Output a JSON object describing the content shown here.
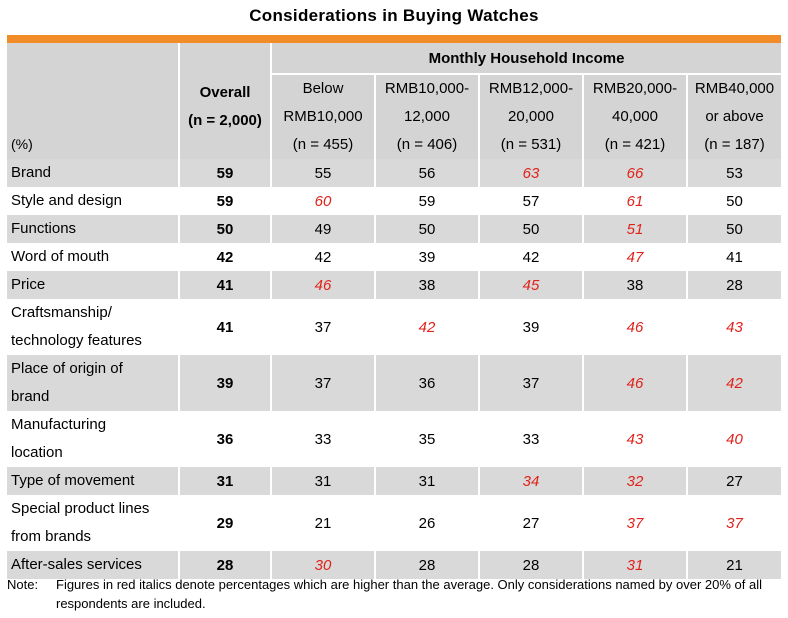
{
  "title": "Considerations in Buying Watches",
  "header": {
    "pct_label": "(%)",
    "overall_label": "Overall",
    "overall_n": "(n = 2,000)",
    "income_label": "Monthly Household Income",
    "income_groups": [
      {
        "line1": "Below",
        "line2": "RMB10,000",
        "n": "(n = 455)"
      },
      {
        "line1": "RMB10,000-",
        "line2": "12,000",
        "n": "(n = 406)"
      },
      {
        "line1": "RMB12,000-",
        "line2": "20,000",
        "n": "(n = 531)"
      },
      {
        "line1": "RMB20,000-",
        "line2": "40,000",
        "n": "(n = 421)"
      },
      {
        "line1": "RMB40,000",
        "line2": "or above",
        "n": "(n = 187)"
      }
    ]
  },
  "rows": [
    {
      "label": "Brand",
      "overall": "59",
      "values": [
        "55",
        "56",
        "63",
        "66",
        "53"
      ],
      "highlight": [
        false,
        false,
        true,
        true,
        false
      ]
    },
    {
      "label": "Style and design",
      "overall": "59",
      "values": [
        "60",
        "59",
        "57",
        "61",
        "50"
      ],
      "highlight": [
        true,
        false,
        false,
        true,
        false
      ]
    },
    {
      "label": "Functions",
      "overall": "50",
      "values": [
        "49",
        "50",
        "50",
        "51",
        "50"
      ],
      "highlight": [
        false,
        false,
        false,
        true,
        false
      ]
    },
    {
      "label": "Word of mouth",
      "overall": "42",
      "values": [
        "42",
        "39",
        "42",
        "47",
        "41"
      ],
      "highlight": [
        false,
        false,
        false,
        true,
        false
      ]
    },
    {
      "label": "Price",
      "overall": "41",
      "values": [
        "46",
        "38",
        "45",
        "38",
        "28"
      ],
      "highlight": [
        true,
        false,
        true,
        false,
        false
      ]
    },
    {
      "label": "Craftsmanship/",
      "label2": "technology features",
      "overall": "41",
      "values": [
        "37",
        "42",
        "39",
        "46",
        "43"
      ],
      "highlight": [
        false,
        true,
        false,
        true,
        true
      ]
    },
    {
      "label": "Place of origin of",
      "label2": "brand",
      "overall": "39",
      "values": [
        "37",
        "36",
        "37",
        "46",
        "42"
      ],
      "highlight": [
        false,
        false,
        false,
        true,
        true
      ]
    },
    {
      "label": "Manufacturing",
      "label2": "location",
      "overall": "36",
      "values": [
        "33",
        "35",
        "33",
        "43",
        "40"
      ],
      "highlight": [
        false,
        false,
        false,
        true,
        true
      ]
    },
    {
      "label": "Type of movement",
      "overall": "31",
      "values": [
        "31",
        "31",
        "34",
        "32",
        "27"
      ],
      "highlight": [
        false,
        false,
        true,
        true,
        false
      ]
    },
    {
      "label": "Special product lines",
      "label2": "from brands",
      "overall": "29",
      "values": [
        "21",
        "26",
        "27",
        "37",
        "37"
      ],
      "highlight": [
        false,
        false,
        false,
        true,
        true
      ]
    },
    {
      "label": "After-sales services",
      "overall": "28",
      "values": [
        "30",
        "28",
        "28",
        "31",
        "21"
      ],
      "highlight": [
        true,
        false,
        false,
        true,
        false
      ]
    }
  ],
  "note": {
    "label": "Note:",
    "text": "Figures in red italics denote percentages which are higher than the average. Only considerations named by over 20% of all respondents are included."
  },
  "colors": {
    "accent_bar": "#f28c28",
    "highlight": "#e0221b",
    "grey_row": "#d9d9d9",
    "header_bg": "#d4d4d4"
  }
}
